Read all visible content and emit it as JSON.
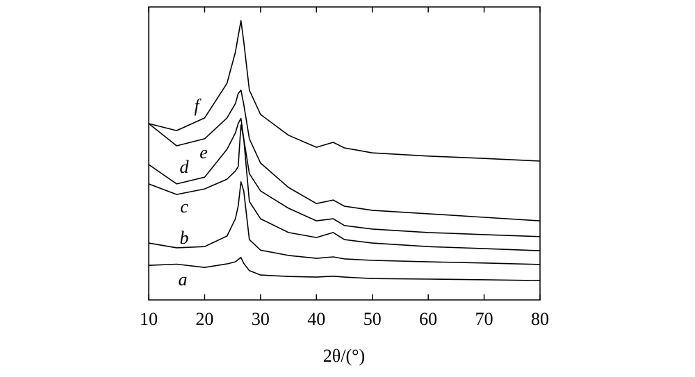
{
  "chart_data": {
    "type": "line",
    "x_label": "2θ/(°)",
    "x": [
      10,
      15,
      20,
      24,
      25.5,
      26,
      26.5,
      27,
      28,
      30,
      35,
      40,
      43,
      45,
      50,
      60,
      70,
      80
    ],
    "xlim": [
      10,
      80
    ],
    "xticks": [
      10,
      20,
      30,
      40,
      50,
      60,
      70,
      80
    ],
    "ylim": [
      0,
      100
    ],
    "series": [
      {
        "name": "a",
        "color": "#000000",
        "values": [
          11.8,
          12.2,
          11.1,
          12.3,
          13,
          13.8,
          14.5,
          12.5,
          10,
          8.5,
          8,
          7.8,
          8.1,
          7.8,
          7.3,
          7.1,
          6.9,
          6.6
        ]
      },
      {
        "name": "b",
        "color": "#000000",
        "values": [
          19.4,
          17.8,
          18.2,
          21.8,
          27.7,
          32,
          40.3,
          37.2,
          20.6,
          17,
          15.2,
          14.2,
          14.7,
          14,
          13.5,
          13,
          12.6,
          12.1
        ]
      },
      {
        "name": "c",
        "color": "#000000",
        "values": [
          39.6,
          36,
          37.9,
          41.2,
          44,
          45.5,
          59.7,
          55,
          33.6,
          27.7,
          23,
          21.3,
          23,
          20.6,
          19.4,
          18.2,
          17.5,
          16.8
        ]
      },
      {
        "name": "d",
        "color": "#000000",
        "values": [
          46.2,
          39.6,
          41.9,
          51.4,
          57,
          60.2,
          62,
          55,
          43.1,
          37.2,
          31.3,
          27,
          27.7,
          25.4,
          24.2,
          23,
          22.3,
          21.6
        ]
      },
      {
        "name": "e",
        "color": "#000000",
        "values": [
          60.2,
          52.6,
          55,
          62.1,
          67,
          70.4,
          71.6,
          66.8,
          55,
          46.7,
          38.4,
          32.9,
          34.1,
          32,
          30.6,
          29.4,
          28.2,
          27
        ]
      },
      {
        "name": "f",
        "color": "#000000",
        "values": [
          60.2,
          57.8,
          62.1,
          73.9,
          84.6,
          90,
          95.3,
          88.2,
          71.6,
          63.3,
          56.2,
          52.1,
          53.8,
          51.9,
          50.2,
          49.1,
          48.3,
          47.4
        ]
      }
    ]
  }
}
